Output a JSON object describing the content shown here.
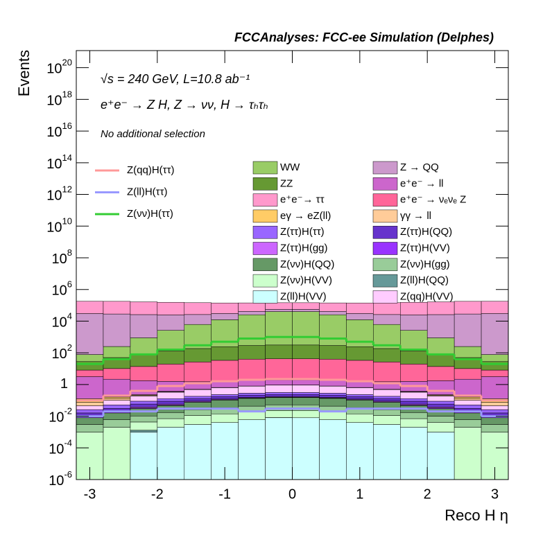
{
  "chart_data": {
    "type": "stacked_histogram",
    "title": "FCCAnalyses: FCC-ee Simulation (Delphes)",
    "y_label": "Events",
    "x_label": "Reco H η",
    "annotations": [
      "√s = 240 GeV, L=10.8 ab⁻¹",
      "e⁺e⁻ → Z H, Z → νν, H → τₕτₕ",
      "No additional selection"
    ],
    "log_y": true,
    "bins": [
      -3.2,
      -2.8,
      -2.4,
      -2.0,
      -1.6,
      -1.2,
      -0.8,
      -0.4,
      0.0,
      0.4,
      0.8,
      1.2,
      1.6,
      2.0,
      2.4,
      2.8,
      3.2
    ],
    "xlim": [
      -3.2,
      3.2
    ],
    "xticks": [
      -3,
      -2,
      -1,
      0,
      1,
      2,
      3
    ],
    "ylim": [
      1e-06,
      1.2e+21
    ],
    "yticks": [
      {
        "value": 1e-06,
        "label": "10",
        "exponent": "-6"
      },
      {
        "value": 0.0001,
        "label": "10",
        "exponent": "-4"
      },
      {
        "value": 0.01,
        "label": "10",
        "exponent": "-2"
      },
      1,
      {
        "value": 100,
        "label": "10",
        "exponent": "2"
      },
      {
        "value": 10000,
        "label": "10",
        "exponent": "4"
      },
      {
        "value": 1000000,
        "label": "10",
        "exponent": "6"
      },
      {
        "value": 100000000,
        "label": "10",
        "exponent": "8"
      },
      {
        "value": 10000000000,
        "label": "10",
        "exponent": "10"
      },
      {
        "value": 1000000000000,
        "label": "10",
        "exponent": "12"
      },
      {
        "value": 100000000000000,
        "label": "10",
        "exponent": "14"
      },
      {
        "value": 10000000000000000,
        "label": "10",
        "exponent": "16"
      },
      {
        "value": 1000000000000000000,
        "label": "10",
        "exponent": "18"
      },
      {
        "value": 100000000000000000000,
        "label": "10",
        "exponent": "20"
      }
    ],
    "series": [
      {
        "name": "Z(ll)H(VV)",
        "color": "#ccffff",
        "values": [
          0,
          0,
          0.001,
          0.002,
          0.003,
          0.004,
          0.006,
          0.008,
          0.008,
          0.006,
          0.004,
          0.003,
          0.002,
          0.001,
          0,
          0
        ]
      },
      {
        "name": "Z(ll)H(QQ)",
        "color": "#669999",
        "values": [
          0,
          0,
          0.0003,
          0,
          0,
          0,
          0,
          0.0002,
          0,
          0,
          0,
          0,
          0,
          0,
          0,
          0
        ]
      },
      {
        "name": "Z(νν)H(VV)",
        "color": "#ccffcc",
        "values": [
          0.001,
          0.002,
          0.003,
          0.005,
          0.008,
          0.01,
          0.012,
          0.014,
          0.014,
          0.012,
          0.01,
          0.008,
          0.005,
          0.003,
          0.002,
          0.001
        ]
      },
      {
        "name": "Z(νν)H(gg)",
        "color": "#99cc99",
        "values": [
          0.002,
          0.004,
          0.006,
          0.01,
          0.015,
          0.02,
          0.025,
          0.03,
          0.03,
          0.025,
          0.02,
          0.015,
          0.01,
          0.006,
          0.004,
          0.002
        ]
      },
      {
        "name": "Z(νν)H(QQ)",
        "color": "#669966",
        "values": [
          0.005,
          0.01,
          0.02,
          0.03,
          0.05,
          0.07,
          0.09,
          0.1,
          0.1,
          0.09,
          0.07,
          0.05,
          0.03,
          0.02,
          0.01,
          0.005
        ]
      },
      {
        "name": "Z(ττ)H(VV)",
        "color": "#9933ff",
        "values": [
          0.001,
          0.002,
          0.003,
          0.004,
          0.005,
          0.006,
          0.007,
          0.008,
          0.008,
          0.007,
          0.006,
          0.005,
          0.004,
          0.003,
          0.002,
          0.001
        ]
      },
      {
        "name": "Z(ττ)H(gg)",
        "color": "#cc66ff",
        "values": [
          0.002,
          0.003,
          0.005,
          0.007,
          0.009,
          0.011,
          0.013,
          0.014,
          0.014,
          0.013,
          0.011,
          0.009,
          0.007,
          0.005,
          0.003,
          0.002
        ]
      },
      {
        "name": "Z(ττ)H(QQ)",
        "color": "#6633cc",
        "values": [
          0.005,
          0.01,
          0.02,
          0.03,
          0.04,
          0.05,
          0.06,
          0.06,
          0.06,
          0.06,
          0.05,
          0.04,
          0.03,
          0.02,
          0.01,
          0.005
        ]
      },
      {
        "name": "Z(ττ)H(ττ)",
        "color": "#9966ff",
        "values": [
          0.01,
          0.02,
          0.03,
          0.04,
          0.05,
          0.06,
          0.07,
          0.08,
          0.08,
          0.07,
          0.06,
          0.05,
          0.04,
          0.03,
          0.02,
          0.01
        ]
      },
      {
        "name": "Z(qq)H(VV)",
        "color": "#ffccff",
        "values": [
          0.02,
          0.05,
          0.1,
          0.2,
          0.3,
          0.4,
          0.5,
          0.6,
          0.6,
          0.5,
          0.4,
          0.3,
          0.2,
          0.1,
          0.05,
          0.02
        ]
      },
      {
        "name": "γγ → ll",
        "color": "#ffcc99",
        "values": [
          0.03,
          0.03,
          0.02,
          0.02,
          0.01,
          0.01,
          0.01,
          0.01,
          0.01,
          0.01,
          0.01,
          0.01,
          0.02,
          0.02,
          0.03,
          0.03
        ]
      },
      {
        "name": "eγ → eZ(ll)",
        "color": "#ffcc66",
        "values": [
          0.05,
          0.03,
          0.02,
          0.02,
          0.01,
          0.01,
          0.01,
          0.01,
          0.01,
          0.01,
          0.01,
          0.01,
          0.02,
          0.02,
          0.03,
          0.05
        ]
      },
      {
        "name": "e⁺e⁻ → ll",
        "color": "#cc66cc",
        "values": [
          3,
          2,
          1.5,
          1.2,
          1,
          1,
          1,
          1,
          1,
          1,
          1,
          1,
          1.2,
          1.5,
          2,
          3
        ]
      },
      {
        "name": "e⁺e⁻ → νₑνₑ Z",
        "color": "#ff6699",
        "values": [
          5,
          8,
          12,
          18,
          25,
          32,
          38,
          40,
          40,
          38,
          32,
          25,
          18,
          12,
          8,
          5
        ]
      },
      {
        "name": "ZZ",
        "color": "#669933",
        "values": [
          20,
          40,
          70,
          110,
          160,
          210,
          250,
          270,
          270,
          250,
          210,
          160,
          110,
          70,
          40,
          20
        ]
      },
      {
        "name": "WW",
        "color": "#99cc66",
        "values": [
          50,
          200,
          800,
          2500,
          6000,
          12000,
          25000,
          40000,
          40000,
          25000,
          12000,
          6000,
          2500,
          800,
          200,
          50
        ]
      },
      {
        "name": "Z → QQ",
        "color": "#cc99cc",
        "values": [
          30000,
          28000,
          25000,
          22000,
          20000,
          18000,
          16000,
          15000,
          15000,
          16000,
          18000,
          20000,
          22000,
          25000,
          28000,
          30000
        ]
      },
      {
        "name": "e⁺e⁻→ ττ",
        "color": "#ff99cc",
        "values": [
          150000,
          150000,
          140000,
          130000,
          120000,
          110000,
          100000,
          90000,
          90000,
          100000,
          110000,
          120000,
          130000,
          140000,
          150000,
          150000
        ]
      }
    ],
    "lines": [
      {
        "name": "Z(qq)H(ττ)",
        "color": "#ff9999",
        "values": [
          0.1,
          0.2,
          0.4,
          0.8,
          1.2,
          1.6,
          2,
          2.2,
          2.2,
          2,
          1.6,
          1.2,
          0.8,
          0.4,
          0.2,
          0.1
        ]
      },
      {
        "name": "Z(ll)H(ττ)",
        "color": "#9999ff",
        "values": [
          0.01,
          0.02,
          0.02,
          0.03,
          0.03,
          0.03,
          0.02,
          0.03,
          0.03,
          0.02,
          0.03,
          0.03,
          0.03,
          0.02,
          0.02,
          0.01
        ]
      },
      {
        "name": "Z(νν)H(ττ)",
        "color": "#33cc33",
        "values": [
          20,
          40,
          80,
          160,
          300,
          500,
          800,
          1000,
          1000,
          800,
          500,
          300,
          160,
          80,
          40,
          20
        ]
      }
    ]
  }
}
